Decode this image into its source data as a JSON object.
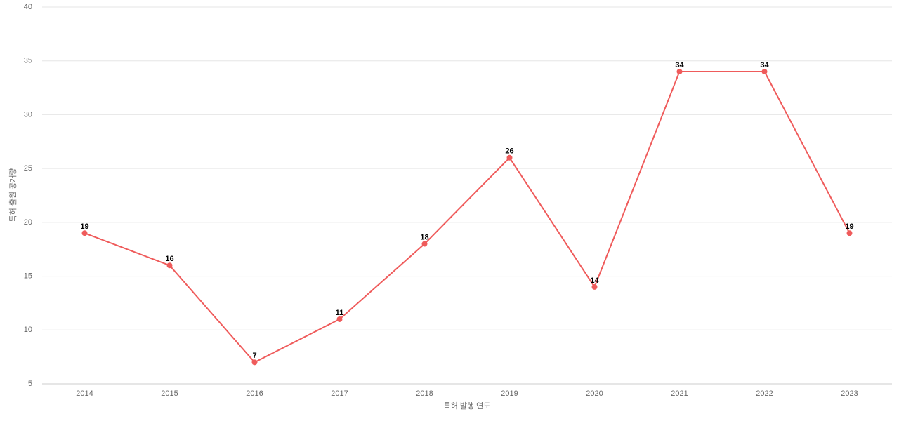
{
  "chart_data": {
    "type": "line",
    "x_label": "특허 발행 연도",
    "y_label": "특허 출원 공개량",
    "categories": [
      "2014",
      "2015",
      "2016",
      "2017",
      "2018",
      "2019",
      "2020",
      "2021",
      "2022",
      "2023"
    ],
    "values": [
      19,
      16,
      7,
      11,
      18,
      26,
      14,
      34,
      34,
      19
    ],
    "color": "#ef5b5b",
    "ylim": [
      5,
      40
    ],
    "yticks": [
      5,
      10,
      15,
      20,
      25,
      30,
      35,
      40
    ],
    "grid": true
  }
}
